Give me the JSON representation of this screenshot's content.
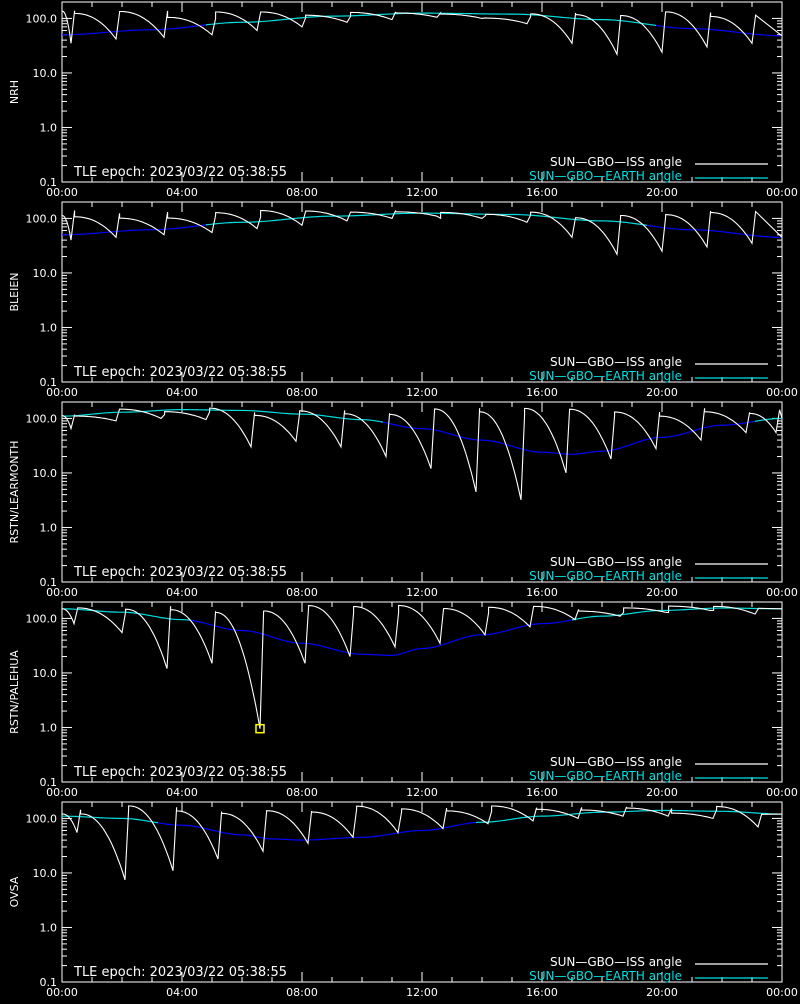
{
  "page": {
    "epoch_text": "TLE epoch: 2023/03/22 05:38:55",
    "legend": [
      {
        "label": "SUN—GBO—ISS angle",
        "color": "#ffffff"
      },
      {
        "label": "SUN—GBO—EARTH angle",
        "color": "#00e0e0"
      }
    ],
    "x_ticks": [
      "00:00",
      "04:00",
      "08:00",
      "12:00",
      "16:00",
      "20:00",
      "00:00"
    ],
    "y_ticks": [
      "0.1",
      "1.0",
      "10.0",
      "100.0"
    ],
    "earth_color": "#00e0e0",
    "earth_shadow_color": "#0000ff",
    "marker_color": "#ffff00"
  },
  "chart_data": [
    {
      "type": "line",
      "ylabel": "NRH",
      "yscale": "log",
      "ylim": [
        0.1,
        200
      ],
      "xlim_hours": [
        0,
        24
      ],
      "earth_curve": {
        "x_hours": [
          0,
          3,
          6,
          9,
          12,
          15,
          18,
          21,
          24
        ],
        "y": [
          50,
          62,
          85,
          110,
          125,
          120,
          95,
          65,
          48
        ]
      },
      "iss_dips": {
        "x_hours": [
          0.3,
          1.8,
          3.4,
          5.0,
          6.5,
          8.0,
          9.5,
          11.0,
          12.5,
          14.0,
          15.5,
          17.0,
          18.5,
          20.0,
          21.5,
          23.0
        ],
        "y": [
          35,
          42,
          45,
          50,
          60,
          70,
          85,
          95,
          105,
          100,
          80,
          35,
          22,
          24,
          30,
          35
        ]
      },
      "iss_peak": 140
    },
    {
      "type": "line",
      "ylabel": "BLEIEN",
      "yscale": "log",
      "ylim": [
        0.1,
        200
      ],
      "xlim_hours": [
        0,
        24
      ],
      "earth_curve": {
        "x_hours": [
          0,
          3,
          6,
          9,
          12,
          15,
          18,
          21,
          24
        ],
        "y": [
          50,
          62,
          85,
          110,
          125,
          118,
          90,
          62,
          45
        ]
      },
      "iss_dips": {
        "x_hours": [
          0.3,
          1.8,
          3.4,
          5.0,
          6.5,
          8.0,
          9.5,
          11.0,
          12.5,
          14.0,
          15.5,
          17.0,
          18.5,
          20.0,
          21.5,
          23.0
        ],
        "y": [
          40,
          45,
          50,
          55,
          65,
          75,
          90,
          100,
          110,
          100,
          85,
          45,
          22,
          25,
          30,
          35
        ]
      },
      "iss_peak": 140
    },
    {
      "type": "line",
      "ylabel": "RSTN/LEARMONTH",
      "yscale": "log",
      "ylim": [
        0.1,
        200
      ],
      "xlim_hours": [
        0,
        24
      ],
      "earth_curve": {
        "x_hours": [
          0,
          2,
          4,
          6,
          8,
          10,
          12,
          14,
          16,
          17,
          18,
          20,
          22,
          24
        ],
        "y": [
          110,
          130,
          145,
          140,
          120,
          95,
          65,
          40,
          24,
          22,
          25,
          45,
          75,
          100
        ]
      },
      "iss_dips": {
        "x_hours": [
          0.3,
          1.8,
          3.3,
          4.8,
          6.3,
          7.8,
          9.3,
          10.8,
          12.3,
          13.8,
          15.3,
          16.8,
          18.3,
          19.8,
          21.3,
          22.8,
          23.8
        ],
        "y": [
          65,
          90,
          100,
          95,
          30,
          38,
          30,
          20,
          12,
          4.5,
          3.2,
          10,
          18,
          28,
          40,
          55,
          55
        ]
      },
      "iss_peak": 155
    },
    {
      "type": "line",
      "ylabel": "RSTN/PALEHUA",
      "yscale": "log",
      "ylim": [
        0.1,
        200
      ],
      "xlim_hours": [
        0,
        24
      ],
      "earth_curve": {
        "x_hours": [
          0,
          2,
          4,
          6,
          8,
          10,
          11,
          12,
          14,
          16,
          18,
          20,
          22,
          24
        ],
        "y": [
          150,
          130,
          95,
          60,
          35,
          22,
          21,
          28,
          50,
          80,
          110,
          140,
          155,
          150
        ]
      },
      "iss_dips": {
        "x_hours": [
          0.4,
          2.0,
          3.5,
          5.0,
          6.6,
          8.1,
          9.6,
          11.1,
          12.6,
          14.1,
          15.6,
          17.1,
          18.6,
          20.1,
          21.6,
          23.1
        ],
        "y": [
          80,
          55,
          12,
          15,
          0.95,
          15,
          20,
          30,
          35,
          50,
          70,
          95,
          110,
          130,
          140,
          120
        ]
      },
      "iss_peak": 175,
      "marker": {
        "x_hours": 6.6,
        "y": 0.95
      }
    },
    {
      "type": "line",
      "ylabel": "OVSA",
      "yscale": "log",
      "ylim": [
        0.1,
        200
      ],
      "xlim_hours": [
        0,
        24
      ],
      "earth_curve": {
        "x_hours": [
          0,
          2,
          4,
          6,
          7,
          8,
          10,
          12,
          14,
          16,
          18,
          20,
          22,
          24
        ],
        "y": [
          110,
          100,
          75,
          50,
          42,
          40,
          45,
          60,
          85,
          110,
          130,
          140,
          135,
          120
        ]
      },
      "iss_dips": {
        "x_hours": [
          0.5,
          2.1,
          3.7,
          5.2,
          6.7,
          8.2,
          9.7,
          11.2,
          12.7,
          14.2,
          15.7,
          17.2,
          18.7,
          20.2,
          21.7,
          23.2
        ],
        "y": [
          55,
          7.5,
          11,
          18,
          25,
          35,
          45,
          55,
          65,
          80,
          90,
          100,
          110,
          110,
          100,
          70
        ]
      },
      "iss_peak": 170
    }
  ]
}
